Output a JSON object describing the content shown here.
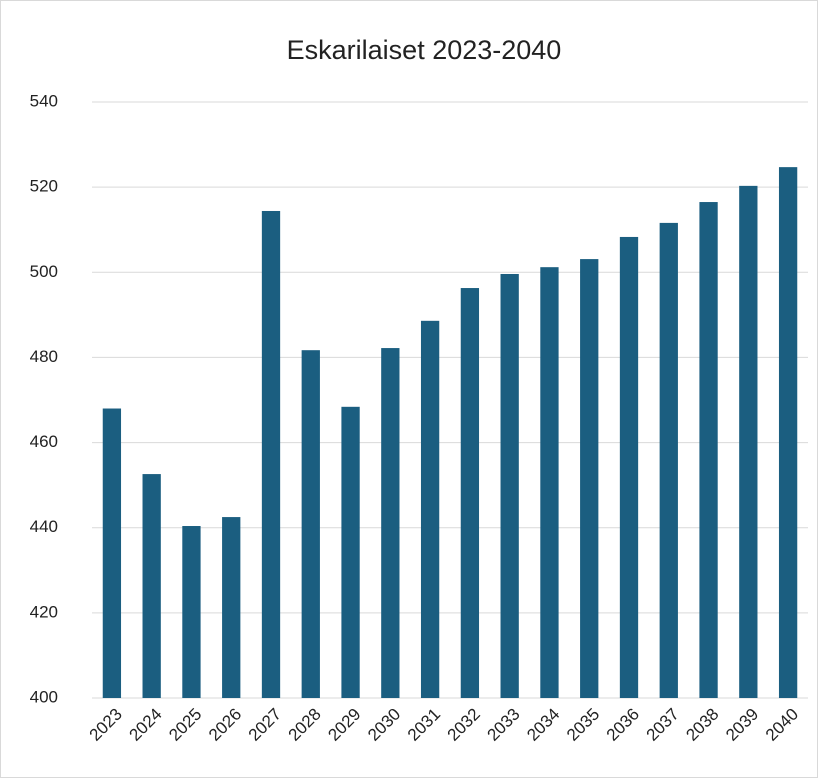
{
  "chart_data": {
    "type": "bar",
    "title": "Eskarilaiset 2023-2040",
    "categories": [
      "2023",
      "2024",
      "2025",
      "2026",
      "2027",
      "2028",
      "2029",
      "2030",
      "2031",
      "2032",
      "2033",
      "2034",
      "2035",
      "2036",
      "2037",
      "2038",
      "2039",
      "2040"
    ],
    "values": [
      468,
      452.6,
      440.4,
      442.5,
      514.4,
      481.7,
      468.4,
      482.2,
      488.6,
      496.3,
      499.6,
      501.2,
      503.1,
      508.3,
      511.6,
      516.5,
      520.3,
      524.7
    ],
    "color": "#1b5e80",
    "ylim": [
      400,
      540
    ],
    "yticks": [
      400,
      420,
      440,
      460,
      480,
      500,
      520,
      540
    ],
    "grid": true
  }
}
